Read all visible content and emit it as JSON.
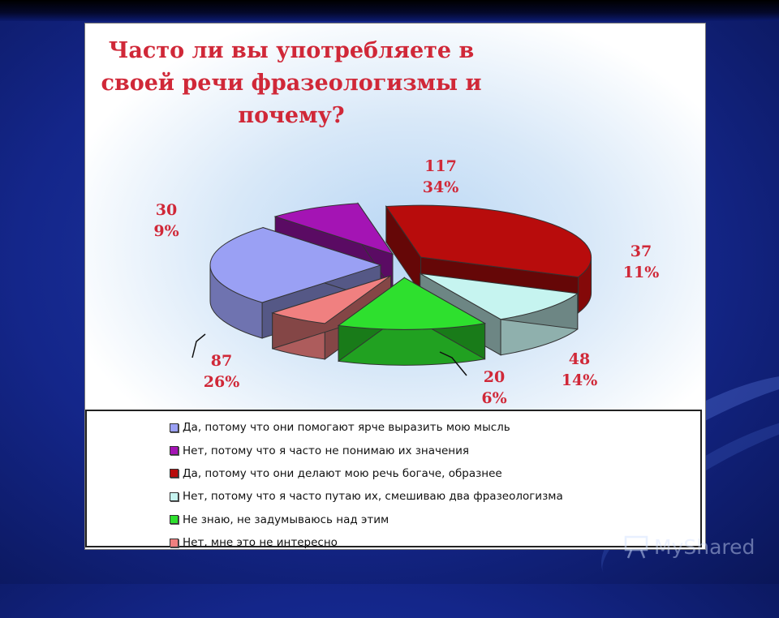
{
  "chart_data": {
    "type": "pie",
    "title": "Часто ли вы употребляете в своей речи фразеологизмы и почему?",
    "title_lines": [
      "Часто ли вы употребляете в",
      "своей речи фразеологизмы и",
      "почему?"
    ],
    "slices": [
      {
        "label": "Да, потому что они помогают ярче выразить мою мысль",
        "value": 87,
        "percent": "26%",
        "color": "#9aa0f4"
      },
      {
        "label": "Нет, потому что я часто не понимаю их значения",
        "value": 30,
        "percent": "9%",
        "color": "#a414b4"
      },
      {
        "label": "Да, потому что они делают  мою речь богаче, образнее",
        "value": 117,
        "percent": "34%",
        "color": "#b80c0c"
      },
      {
        "label": "Нет, потому что я часто путаю их, смешиваю два фразеологизма",
        "value": 37,
        "percent": "11%",
        "color": "#c6f4f0"
      },
      {
        "label": "Не знаю, не задумываюсь над этим",
        "value": 48,
        "percent": "14%",
        "color": "#2ee02e"
      },
      {
        "label": "Нет, мне это не интересно",
        "value": 20,
        "percent": "6%",
        "color": "#f08080"
      }
    ],
    "legend_position": "bottom",
    "style": "3d-exploded-pie"
  },
  "branding": {
    "logo_text": "MyShared"
  },
  "colors": {
    "background": "#1a2f9a",
    "label_text": "#d02838"
  }
}
